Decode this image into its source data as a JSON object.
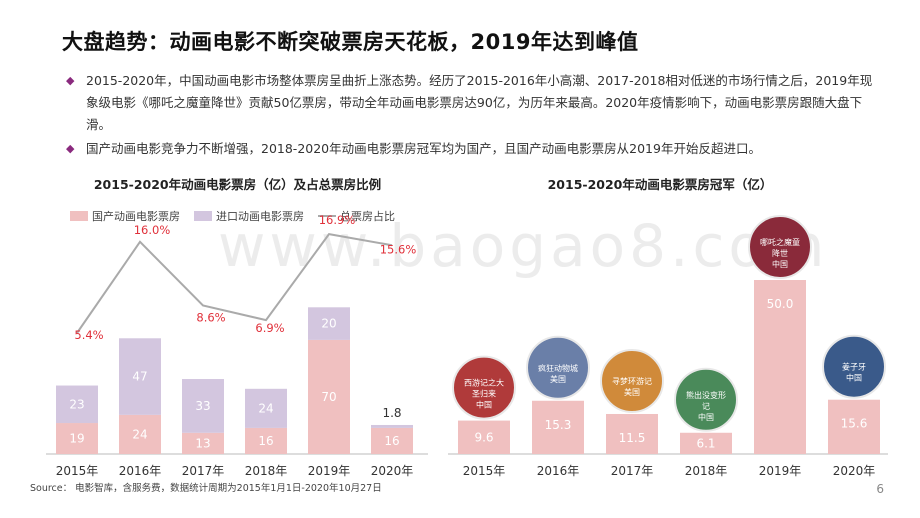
{
  "title": "大盘趋势：动画电影不断突破票房天花板，2019年达到峰值",
  "bullets": [
    "2015-2020年，中国动画电影市场整体票房呈曲折上涨态势。经历了2015-2016年小高潮、2017-2018相对低迷的市场行情之后，2019年现象级电影《哪吒之魔童降世》贡献50亿票房，带动全年动画电影票房达90亿，为历年来最高。2020年疫情影响下，动画电影票房跟随大盘下滑。",
    "国产动画电影竞争力不断增强，2018-2020年动画电影票房冠军均为国产，且国产动画电影票房从2019年开始反超进口。"
  ],
  "bullet_marker": "◆",
  "watermark": "www.baogao8.com",
  "source": "Source： 电影智库，含服务费，数据统计周期为2015年1月1日-2020年10月27日",
  "page_number": "6",
  "chart_data": [
    {
      "type": "bar",
      "title": "2015-2020年动画电影票房（亿）及占总票房比例",
      "stacked": true,
      "categories": [
        "2015年",
        "2016年",
        "2017年",
        "2018年",
        "2019年",
        "2020年"
      ],
      "series": [
        {
          "name": "国产动画电影票房",
          "values": [
            19,
            24,
            13,
            16,
            70,
            16
          ],
          "color": "#f0c0c0"
        },
        {
          "name": "进口动画电影票房",
          "values": [
            23,
            47,
            33,
            24,
            20,
            1.8
          ],
          "color": "#d3c6df"
        }
      ],
      "line_series": {
        "name": "总票房占比",
        "values": [
          5.4,
          16.0,
          8.6,
          6.9,
          16.9,
          15.6
        ],
        "labels": [
          "5.4%",
          "16.0%",
          "8.6%",
          "6.9%",
          "16.9%",
          "15.6%"
        ],
        "color": "#aaaaaa",
        "label_color": "#e0303a"
      },
      "legend_position": "top-left"
    },
    {
      "type": "bar",
      "title": "2015-2020年动画电影票房冠军（亿）",
      "categories": [
        "2015年",
        "2016年",
        "2017年",
        "2018年",
        "2019年",
        "2020年"
      ],
      "values": [
        9.6,
        15.3,
        11.5,
        6.1,
        50.0,
        15.6
      ],
      "value_labels": [
        "9.6",
        "15.3",
        "11.5",
        "6.1",
        "50.0",
        "15.6"
      ],
      "color": "#f0c0c0",
      "champions": [
        {
          "label": "西游记之大圣归来",
          "origin": "中国"
        },
        {
          "label": "疯狂动物城",
          "origin": "美国"
        },
        {
          "label": "寻梦环游记",
          "origin": "美国"
        },
        {
          "label": "熊出没变形记",
          "origin": "中国"
        },
        {
          "label": "哪吒之魔童降世",
          "origin": "中国"
        },
        {
          "label": "姜子牙",
          "origin": "中国"
        }
      ]
    }
  ]
}
